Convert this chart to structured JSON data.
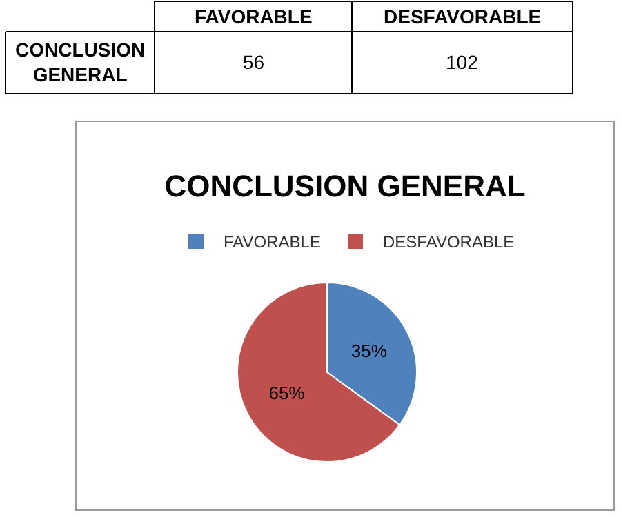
{
  "chart_data": [
    {
      "type": "other",
      "categories": [
        "FAVORABLE",
        "DESFAVORABLE"
      ],
      "y_categories": [
        "CONCLUSION GENERAL"
      ],
      "values": [
        56,
        102
      ],
      "data_labels": true
    },
    {
      "type": "pie",
      "title": "CONCLUSION GENERAL",
      "categories": [
        "FAVORABLE",
        "DESFAVORABLE"
      ],
      "values": [
        35,
        65
      ],
      "value_labels": [
        "35%",
        "65%"
      ],
      "colors": [
        "#4f81bd",
        "#c0504d"
      ],
      "legend": "top"
    }
  ]
}
